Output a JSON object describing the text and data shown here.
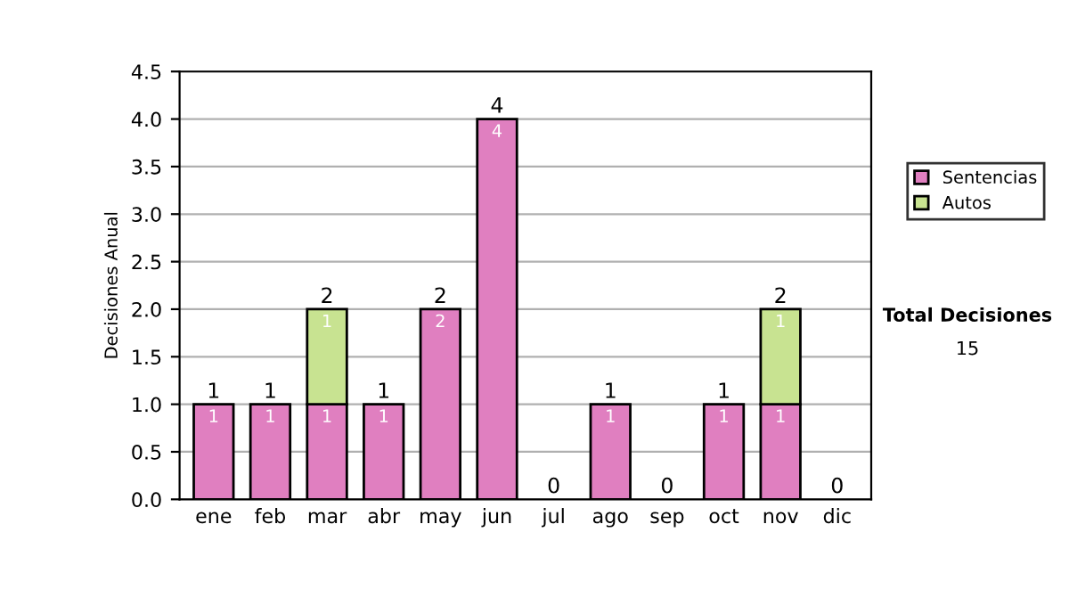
{
  "chart_data": {
    "type": "bar",
    "stacked": true,
    "ylabel": "Decisiones Anual",
    "categories": [
      "ene",
      "feb",
      "mar",
      "abr",
      "may",
      "jun",
      "jul",
      "ago",
      "sep",
      "oct",
      "nov",
      "dic"
    ],
    "series": [
      {
        "name": "Sentencias",
        "color": "#e07fc0",
        "values": [
          1,
          1,
          1,
          1,
          2,
          4,
          0,
          1,
          0,
          1,
          1,
          0
        ],
        "value_labels": [
          "1",
          "1",
          "1",
          "1",
          "2",
          "4",
          null,
          "1",
          null,
          "1",
          "1",
          null
        ]
      },
      {
        "name": "Autos",
        "color": "#c8e391",
        "values": [
          0,
          0,
          1,
          0,
          0,
          0,
          0,
          0,
          0,
          0,
          1,
          0
        ],
        "value_labels": [
          null,
          null,
          "1",
          null,
          null,
          null,
          null,
          null,
          null,
          null,
          "1",
          null
        ]
      }
    ],
    "totals": [
      "1",
      "1",
      "2",
      "1",
      "2",
      "4",
      "0",
      "1",
      "0",
      "1",
      "2",
      "0"
    ],
    "ylim": [
      0,
      4.5
    ],
    "yticks": [
      "0.0",
      "0.5",
      "1.0",
      "1.5",
      "2.0",
      "2.5",
      "3.0",
      "3.5",
      "4.0",
      "4.5"
    ],
    "grid": "y",
    "legend": "right",
    "annotations": [
      "Total Decisiones",
      "15"
    ]
  }
}
